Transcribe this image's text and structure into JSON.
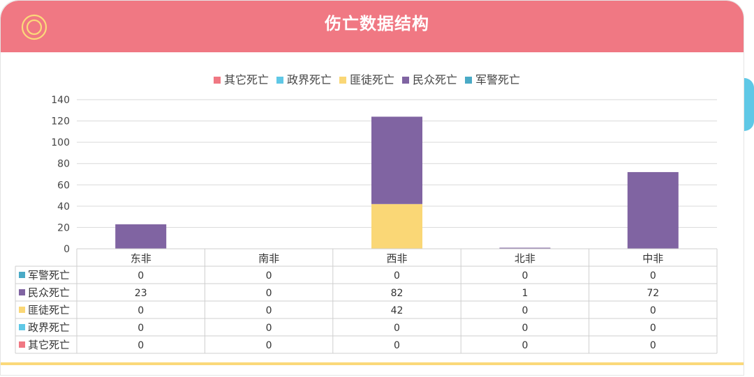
{
  "header": {
    "title": "伤亡数据结构",
    "icon": "target-ring-icon"
  },
  "colors": {
    "header_bg": "#f07883",
    "accent_line": "#fbd97a",
    "side_tab": "#5fc8e6"
  },
  "chart_data": {
    "type": "bar",
    "stacked": true,
    "title": "",
    "xlabel": "",
    "ylabel": "",
    "ylim": [
      0,
      140
    ],
    "yticks": [
      0,
      20,
      40,
      60,
      80,
      100,
      120,
      140
    ],
    "grid": true,
    "legend_position": "top",
    "categories": [
      "东非",
      "南非",
      "西非",
      "北非",
      "中非"
    ],
    "legend_order": [
      "其它死亡",
      "政界死亡",
      "匪徒死亡",
      "民众死亡",
      "军警死亡"
    ],
    "series": [
      {
        "name": "军警死亡",
        "color": "#4aaac6",
        "values": [
          0,
          0,
          0,
          0,
          0
        ]
      },
      {
        "name": "民众死亡",
        "color": "#8064a2",
        "values": [
          23,
          0,
          82,
          1,
          72
        ]
      },
      {
        "name": "匪徒死亡",
        "color": "#fad776",
        "values": [
          0,
          0,
          42,
          0,
          0
        ]
      },
      {
        "name": "政界死亡",
        "color": "#5fc8e6",
        "values": [
          0,
          0,
          0,
          0,
          0
        ]
      },
      {
        "name": "其它死亡",
        "color": "#f07883",
        "values": [
          0,
          0,
          0,
          0,
          0
        ]
      }
    ],
    "stack_order": [
      "军警死亡",
      "其它死亡",
      "政界死亡",
      "匪徒死亡",
      "民众死亡"
    ]
  }
}
